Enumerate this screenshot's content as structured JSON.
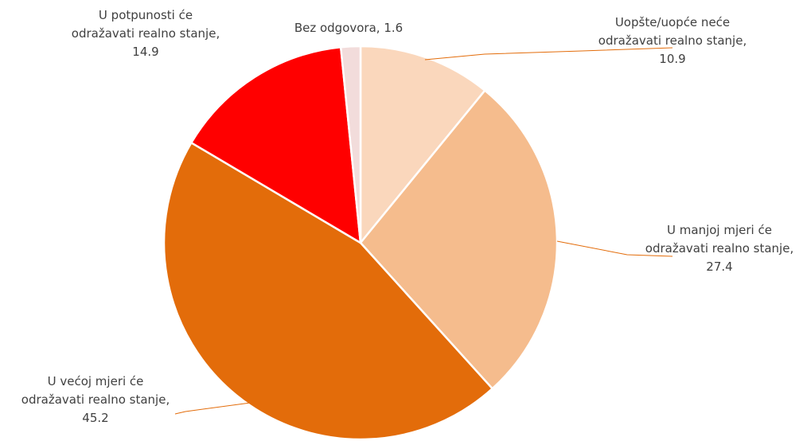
{
  "chart_data": {
    "type": "pie",
    "title": "",
    "start_angle_deg": 0,
    "direction": "clockwise",
    "slices": [
      {
        "label_lines": [
          "Uopšte/uopće neće",
          "odražavati realno stanje,",
          "10.9"
        ],
        "category": "Uopšte/uopće neće odražavati realno stanje",
        "value": 10.9,
        "color": "#FAD7BC"
      },
      {
        "label_lines": [
          "U manjoj mjeri će",
          "odražavati realno stanje,",
          "27.4"
        ],
        "category": "U manjoj mjeri će odražavati realno stanje",
        "value": 27.4,
        "color": "#F5BC8D"
      },
      {
        "label_lines": [
          "U većoj mjeri će",
          "odražavati realno stanje,",
          "45.2"
        ],
        "category": "U većoj mjeri će odražavati realno stanje",
        "value": 45.2,
        "color": "#E36C0A"
      },
      {
        "label_lines": [
          "U potpunosti će",
          "odražavati realno stanje,",
          "14.9"
        ],
        "category": "U potpunosti će odražavati realno stanje",
        "value": 14.9,
        "color": "#FF0000"
      },
      {
        "label_lines": [
          "Bez odgovora, 1.6"
        ],
        "category": "Bez odgovora",
        "value": 1.6,
        "color": "#F2DCDB"
      }
    ],
    "leader_line_color": "#E36C0A",
    "slice_border_color": "#FFFFFF"
  }
}
